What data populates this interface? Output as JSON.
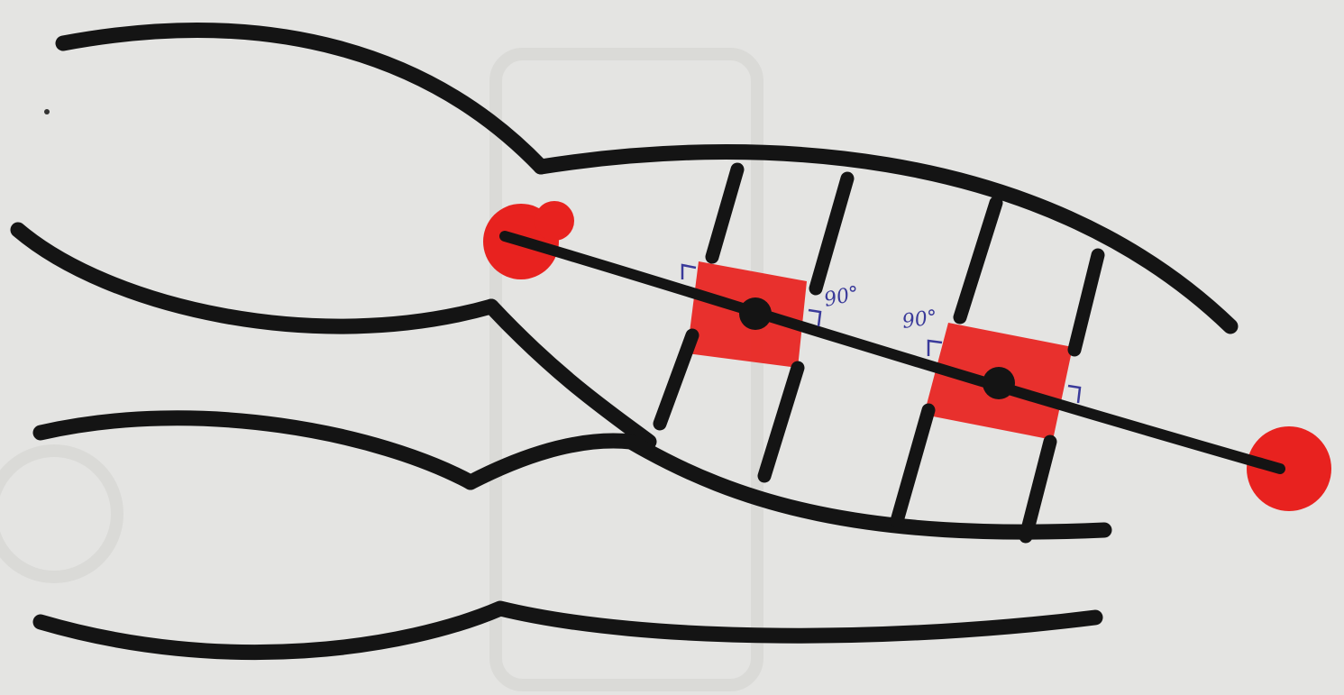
{
  "diagram": {
    "angle_labels": {
      "left": "90°",
      "right": "90°"
    },
    "colors": {
      "paper": "#e4e4e2",
      "ink": "#141414",
      "marker_red": "#e8221f",
      "pen_blue": "#3a3a9a"
    }
  }
}
